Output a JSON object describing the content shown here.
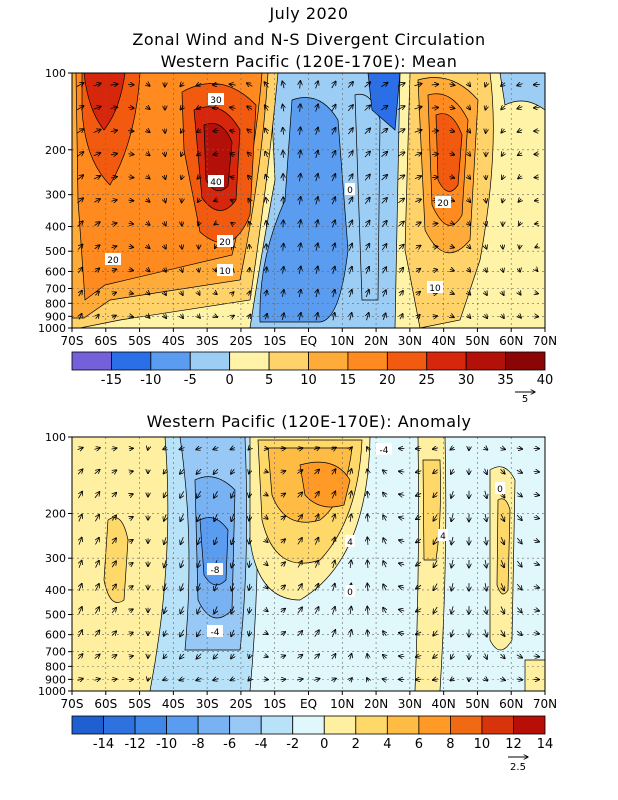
{
  "titles": {
    "line1": "July 2020",
    "line2": "Zonal Wind and N-S Divergent Circulation",
    "line3": "Western Pacific (120E-170E): Mean",
    "line4": "Western Pacific (120E-170E): Anomaly"
  },
  "chart_data": [
    {
      "type": "heatmap",
      "title": "Western Pacific (120E-170E): Mean",
      "x_tick_labels": [
        "70S",
        "60S",
        "50S",
        "40S",
        "30S",
        "20S",
        "10S",
        "EQ",
        "10N",
        "20N",
        "30N",
        "40N",
        "50N",
        "60N",
        "70N"
      ],
      "x_range": [
        -70,
        70
      ],
      "y_tick_labels": [
        "100",
        "200",
        "300",
        "400",
        "500",
        "600",
        "700",
        "800",
        "900",
        "1000"
      ],
      "y_range_hpa": [
        1000,
        100
      ],
      "contour_labels": [
        "30",
        "40",
        "20",
        "20",
        "10",
        "0",
        "20",
        "10"
      ],
      "colorbar": {
        "labels": [
          "-15",
          "-10",
          "-5",
          "0",
          "5",
          "10",
          "15",
          "20",
          "25",
          "30",
          "35",
          "40"
        ],
        "colors": [
          "#7460d8",
          "#2a6ee8",
          "#5a9cf0",
          "#9ccdf5",
          "#fff3a8",
          "#ffd36a",
          "#ffab3a",
          "#ff8a1f",
          "#f25a10",
          "#d6260c",
          "#b4100a",
          "#8a0606"
        ]
      },
      "vector_reference": "5"
    },
    {
      "type": "heatmap",
      "title": "Western Pacific (120E-170E): Anomaly",
      "x_tick_labels": [
        "70S",
        "60S",
        "50S",
        "40S",
        "30S",
        "20S",
        "10S",
        "EQ",
        "10N",
        "20N",
        "30N",
        "40N",
        "50N",
        "60N",
        "70N"
      ],
      "x_range": [
        -70,
        70
      ],
      "y_tick_labels": [
        "100",
        "200",
        "300",
        "400",
        "500",
        "600",
        "700",
        "800",
        "900",
        "1000"
      ],
      "y_range_hpa": [
        1000,
        100
      ],
      "contour_labels": [
        "-4",
        "-8",
        "-4",
        "4",
        "0",
        "4",
        "0"
      ],
      "colorbar": {
        "labels": [
          "-14",
          "-12",
          "-10",
          "-8",
          "-6",
          "-4",
          "-2",
          "0",
          "2",
          "4",
          "6",
          "8",
          "10",
          "12",
          "14"
        ],
        "colors": [
          "#1f5fd0",
          "#2e72e0",
          "#3e86e8",
          "#5a9cf0",
          "#78b2f2",
          "#98c8f5",
          "#b8e2f8",
          "#e0f7fb",
          "#ffefa0",
          "#ffd86a",
          "#ffbc45",
          "#ff9a26",
          "#f06a14",
          "#d8340c",
          "#b80e08"
        ]
      },
      "vector_reference": "2.5"
    }
  ]
}
